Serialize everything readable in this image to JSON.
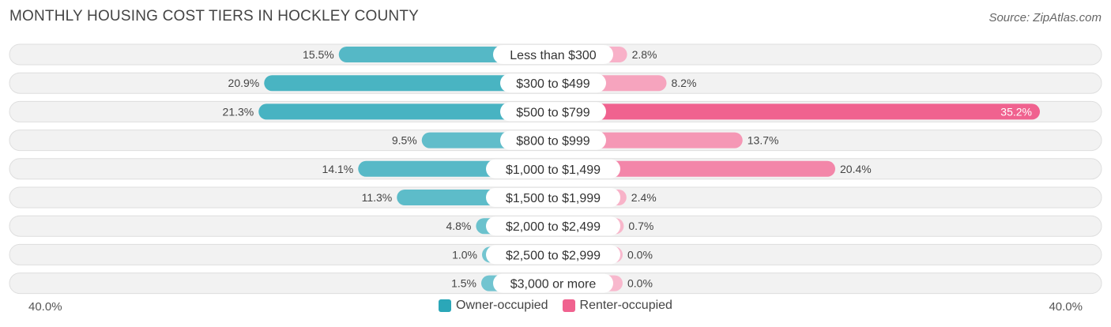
{
  "chart_data": {
    "type": "bar",
    "orientation": "horizontal-diverging",
    "title": "MONTHLY HOUSING COST TIERS IN HOCKLEY COUNTY",
    "source": "Source: ZipAtlas.com",
    "categories": [
      "Less than $300",
      "$300 to $499",
      "$500 to $799",
      "$800 to $999",
      "$1,000 to $1,499",
      "$1,500 to $1,999",
      "$2,000 to $2,499",
      "$2,500 to $2,999",
      "$3,000 or more"
    ],
    "series": [
      {
        "name": "Owner-occupied",
        "values": [
          15.5,
          20.9,
          21.3,
          9.5,
          14.1,
          11.3,
          4.8,
          1.0,
          1.5
        ],
        "labels": [
          "15.5%",
          "20.9%",
          "21.3%",
          "9.5%",
          "14.1%",
          "11.3%",
          "4.8%",
          "1.0%",
          "1.5%"
        ],
        "color": "#2ba7b8"
      },
      {
        "name": "Renter-occupied",
        "values": [
          2.8,
          8.2,
          35.2,
          13.7,
          20.4,
          2.4,
          0.7,
          0.0,
          0.0
        ],
        "labels": [
          "2.8%",
          "8.2%",
          "35.2%",
          "13.7%",
          "20.4%",
          "2.4%",
          "0.7%",
          "0.0%",
          "0.0%"
        ],
        "color": "#f0628f"
      }
    ],
    "xlim": [
      -40,
      40
    ],
    "axis_left_label": "40.0%",
    "axis_right_label": "40.0%",
    "legend_position": "bottom-center"
  }
}
